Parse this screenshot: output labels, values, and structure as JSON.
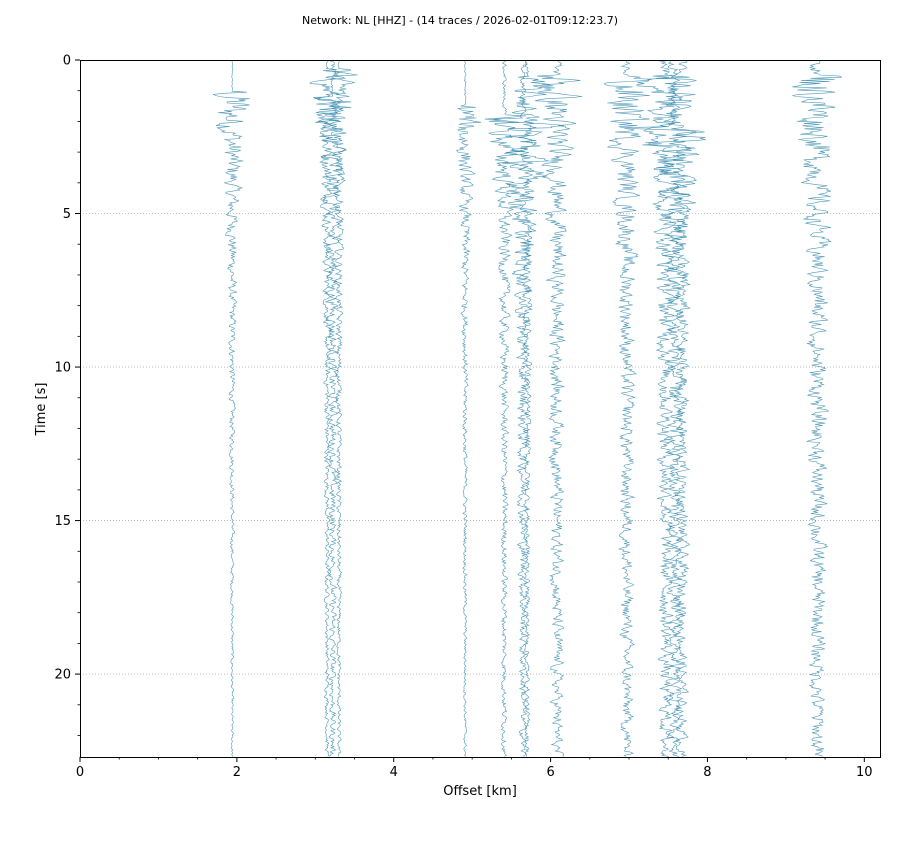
{
  "chart_data": {
    "type": "line",
    "title": "Network: NL [HHZ] - (14 traces / 2026-02-01T09:12:23.7)",
    "xlabel": "Offset [km]",
    "ylabel": "Time [s]",
    "xlim": [
      0,
      10.2
    ],
    "ylim": [
      22.7,
      0
    ],
    "y_inverted": true,
    "xticks": [
      "0",
      "2",
      "4",
      "6",
      "8",
      "10"
    ],
    "yticks": [
      "0",
      "5",
      "10",
      "15",
      "20"
    ],
    "xtick_values": [
      0,
      2,
      4,
      6,
      8,
      10
    ],
    "ytick_values": [
      0,
      5,
      10,
      15,
      20
    ],
    "grid": "horizontal dotted",
    "trace_color": "#2e86ab",
    "traces": [
      {
        "offset": 1.94,
        "onset": 1.0,
        "amp": 0.4,
        "noise": 0.01
      },
      {
        "offset": 3.15,
        "onset": 0.3,
        "amp": 0.25,
        "noise": 0.03
      },
      {
        "offset": 3.22,
        "onset": 1.2,
        "amp": 0.35,
        "noise": 0.05
      },
      {
        "offset": 3.3,
        "onset": 0.3,
        "amp": 0.25,
        "noise": 0.03
      },
      {
        "offset": 4.91,
        "onset": 1.5,
        "amp": 0.25,
        "noise": 0.02
      },
      {
        "offset": 5.41,
        "onset": 1.8,
        "amp": 0.3,
        "noise": 0.04
      },
      {
        "offset": 5.65,
        "onset": 1.9,
        "amp": 0.55,
        "noise": 0.05
      },
      {
        "offset": 5.7,
        "onset": 0.5,
        "amp": 0.3,
        "noise": 0.04
      },
      {
        "offset": 6.08,
        "onset": 0.5,
        "amp": 0.35,
        "noise": 0.1
      },
      {
        "offset": 6.97,
        "onset": 0.5,
        "amp": 0.4,
        "noise": 0.1
      },
      {
        "offset": 7.47,
        "onset": 0.5,
        "amp": 0.35,
        "noise": 0.12
      },
      {
        "offset": 7.58,
        "onset": 2.2,
        "amp": 0.5,
        "noise": 0.1
      },
      {
        "offset": 7.67,
        "onset": 0.5,
        "amp": 0.3,
        "noise": 0.1
      },
      {
        "offset": 9.4,
        "onset": 0.5,
        "amp": 0.38,
        "noise": 0.14
      }
    ]
  }
}
